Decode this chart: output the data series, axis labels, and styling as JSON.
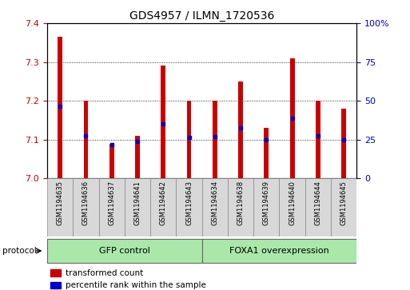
{
  "title": "GDS4957 / ILMN_1720536",
  "samples": [
    "GSM1194635",
    "GSM1194636",
    "GSM1194637",
    "GSM1194641",
    "GSM1194642",
    "GSM1194643",
    "GSM1194634",
    "GSM1194638",
    "GSM1194639",
    "GSM1194640",
    "GSM1194644",
    "GSM1194645"
  ],
  "red_values": [
    7.365,
    7.2,
    7.09,
    7.11,
    7.29,
    7.2,
    7.2,
    7.25,
    7.13,
    7.31,
    7.2,
    7.18
  ],
  "blue_values": [
    7.185,
    7.11,
    7.088,
    7.095,
    7.14,
    7.105,
    7.107,
    7.13,
    7.1,
    7.155,
    7.11,
    7.1
  ],
  "ylim_left": [
    7.0,
    7.4
  ],
  "ylim_right": [
    0,
    100
  ],
  "yticks_left": [
    7.0,
    7.1,
    7.2,
    7.3,
    7.4
  ],
  "yticks_right": [
    0,
    25,
    50,
    75,
    100
  ],
  "ytick_labels_right": [
    "0",
    "25",
    "50",
    "75",
    "100%"
  ],
  "grid_yticks": [
    7.1,
    7.2,
    7.3
  ],
  "group1_label": "GFP control",
  "group2_label": "FOXA1 overexpression",
  "group1_count": 6,
  "group2_count": 6,
  "bar_color": "#cc0000",
  "dot_color": "#0000cc",
  "bar_width": 0.18,
  "left_tick_color": "#cc0000",
  "right_tick_color": "#0000cc",
  "legend_red_label": "transformed count",
  "legend_blue_label": "percentile rank within the sample",
  "group_bg_color": "#aae8aa",
  "sample_bg_color": "#d8d8d8",
  "title_fontsize": 10,
  "tick_fontsize": 8,
  "sample_fontsize": 6,
  "group_label_fontsize": 8,
  "legend_fontsize": 7.5
}
